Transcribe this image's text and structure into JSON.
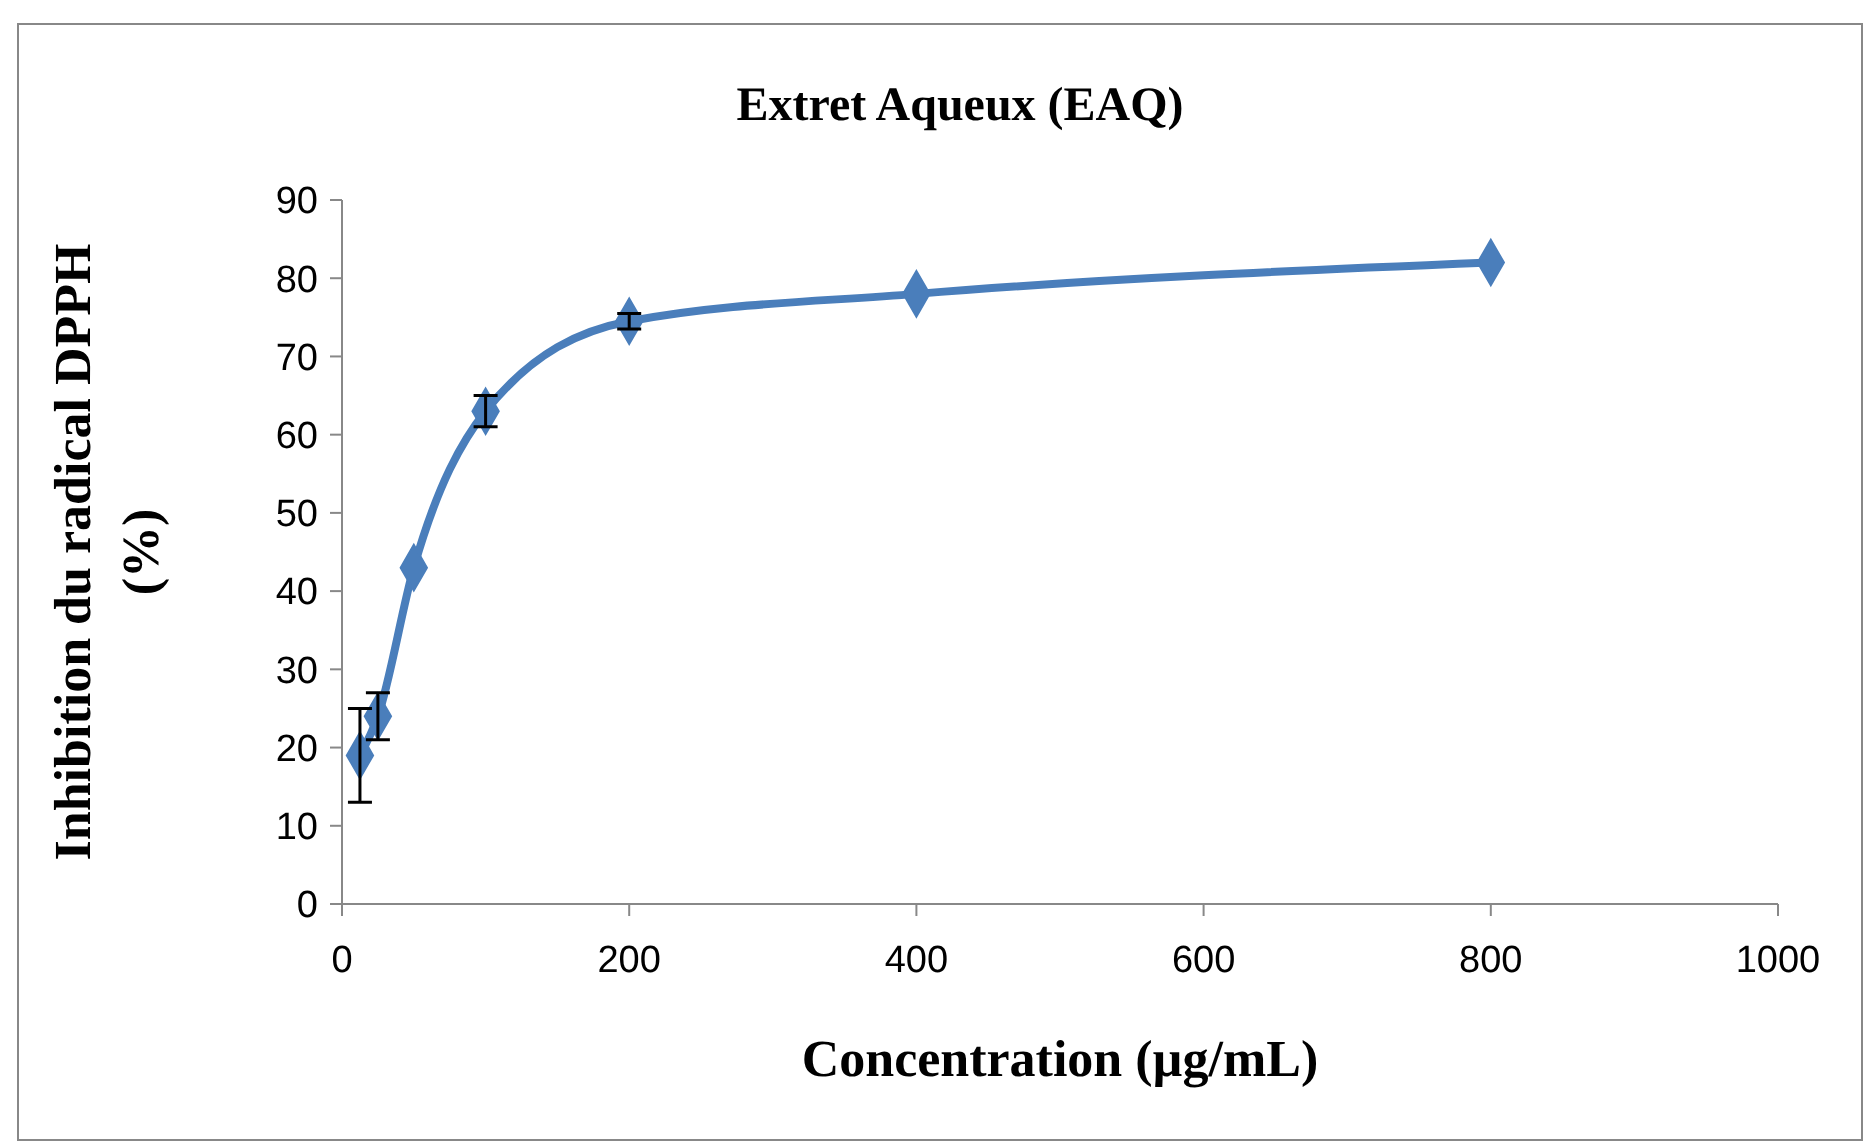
{
  "chart_data": {
    "type": "line",
    "title": "Extret Aqueux (EAQ)",
    "xlabel": "Concentration (µg/mL)",
    "ylabel": "Inhibition  du radical DPPH\n(%)",
    "x": [
      12.5,
      25,
      50,
      100,
      200,
      400,
      800
    ],
    "series": [
      {
        "color": "#4a7ebb",
        "values": [
          19,
          24,
          43,
          63,
          74.5,
          78,
          82
        ],
        "errors": [
          6,
          3,
          null,
          2,
          1,
          null,
          null
        ]
      }
    ],
    "xlim": [
      0,
      1000
    ],
    "xticks": [
      0,
      200,
      400,
      600,
      800,
      1000
    ],
    "ylim": [
      0,
      90
    ],
    "yticks": [
      0,
      10,
      20,
      30,
      40,
      50,
      60,
      70,
      80,
      90
    ],
    "marker": "diamond",
    "line_style": "solid",
    "grid": false
  }
}
